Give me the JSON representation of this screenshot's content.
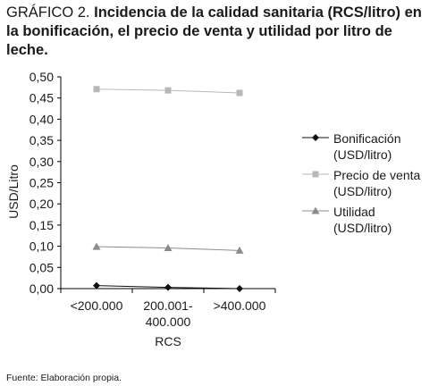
{
  "title": {
    "prefix": "GRÁFICO 2.",
    "text": "Incidencia de la calidad sanitaria (RCS/litro) en la bonificación, el precio de venta y utilidad por litro de leche."
  },
  "source": "Fuente: Elaboración propia.",
  "colors": {
    "bonificacion": "#111111",
    "precio": "#b8b8b8",
    "utilidad": "#8c8c8c",
    "axis": "#000000"
  },
  "chart_data": {
    "type": "line",
    "categories": [
      [
        "<200.000"
      ],
      [
        "200.001-",
        "400.000"
      ],
      [
        ">400.000"
      ]
    ],
    "xlabel": "RCS",
    "ylabel": "USD/Litro",
    "ylim": [
      0,
      0.5
    ],
    "yticks": [
      "0,00",
      "0,05",
      "0,10",
      "0,15",
      "0,20",
      "0,25",
      "0,30",
      "0,35",
      "0,40",
      "0,45",
      "0,50"
    ],
    "grid": false,
    "legend_position": "right",
    "series": [
      {
        "key": "bonificacion",
        "name": [
          "Bonificación",
          "(USD/litro)"
        ],
        "marker": "diamond",
        "values": [
          0.007,
          0.003,
          0.0
        ]
      },
      {
        "key": "precio",
        "name": [
          "Precio de venta",
          "(USD/litro)"
        ],
        "marker": "square",
        "values": [
          0.471,
          0.468,
          0.462
        ]
      },
      {
        "key": "utilidad",
        "name": [
          "Utilidad",
          "(USD/litro)"
        ],
        "marker": "triangle",
        "values": [
          0.099,
          0.096,
          0.09
        ]
      }
    ]
  }
}
